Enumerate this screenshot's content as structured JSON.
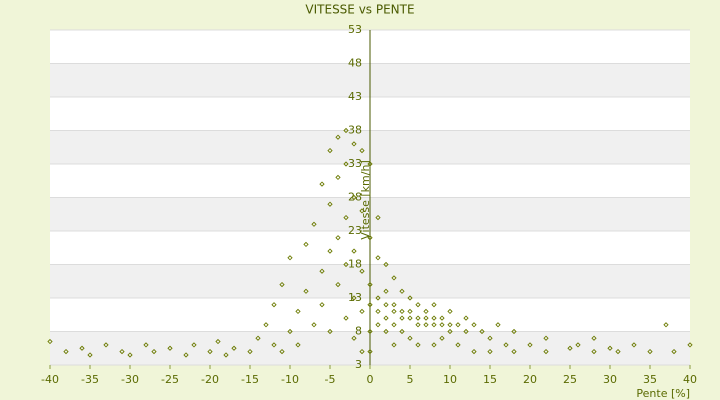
{
  "chart_data": {
    "type": "scatter",
    "title": "VITESSE vs PENTE",
    "x_label": "Pente [%]",
    "y_label": "Vitesse [km/h]",
    "color": "#6b7a00",
    "xlim": [
      -40,
      40
    ],
    "xticks": [
      -40,
      -35,
      -30,
      -25,
      -20,
      -15,
      -10,
      -5,
      0,
      5,
      10,
      15,
      20,
      25,
      30,
      35,
      40
    ],
    "ylim": [
      3,
      53
    ],
    "yticks": [
      3,
      8,
      13,
      18,
      23,
      28,
      33,
      38,
      43,
      48,
      53
    ],
    "x": [
      -40,
      -38,
      -36,
      -35,
      -33,
      -31,
      -30,
      -28,
      -27,
      -25,
      -23,
      -22,
      -20,
      -19,
      -18,
      -17,
      -15,
      -14,
      -13,
      -12,
      -12,
      -11,
      -11,
      -10,
      -10,
      -9,
      -9,
      -8,
      -8,
      -7,
      -7,
      -6,
      -6,
      -6,
      -5,
      -5,
      -5,
      -5,
      -4,
      -4,
      -4,
      -4,
      -3,
      -3,
      -3,
      -3,
      -3,
      -2,
      -2,
      -2,
      -2,
      -2,
      -1,
      -1,
      -1,
      -1,
      -1,
      0,
      0,
      0,
      0,
      0,
      0,
      1,
      1,
      1,
      1,
      1,
      2,
      2,
      2,
      2,
      2,
      3,
      3,
      3,
      3,
      3,
      4,
      4,
      4,
      4,
      5,
      5,
      5,
      5,
      6,
      6,
      6,
      6,
      7,
      7,
      7,
      8,
      8,
      8,
      8,
      9,
      9,
      9,
      10,
      10,
      10,
      11,
      11,
      12,
      12,
      13,
      13,
      14,
      15,
      15,
      16,
      17,
      18,
      18,
      20,
      22,
      22,
      25,
      26,
      28,
      28,
      30,
      31,
      33,
      35,
      37,
      38,
      40
    ],
    "values": [
      6.5,
      5,
      5.5,
      4.5,
      6,
      5,
      4.5,
      6,
      5,
      5.5,
      4.5,
      6,
      5,
      6.5,
      4.5,
      5.5,
      5,
      7,
      9,
      6,
      12,
      5,
      15,
      8,
      19,
      11,
      6,
      14,
      21,
      9,
      24,
      17,
      30,
      12,
      35,
      27,
      20,
      8,
      37,
      31,
      22,
      15,
      38,
      33,
      25,
      18,
      10,
      36,
      28,
      20,
      13,
      7,
      35,
      26,
      17,
      11,
      5,
      33,
      22,
      15,
      12,
      8,
      5,
      25,
      19,
      13,
      11,
      9,
      18,
      14,
      12,
      10,
      8,
      16,
      12,
      11,
      9,
      6,
      14,
      11,
      10,
      8,
      13,
      11,
      10,
      7,
      12,
      10,
      9,
      6,
      11,
      10,
      9,
      12,
      10,
      9,
      6,
      10,
      9,
      7,
      11,
      9,
      8,
      9,
      6,
      10,
      8,
      9,
      5,
      8,
      7,
      5,
      9,
      6,
      8,
      5,
      6,
      5,
      7,
      5.5,
      6,
      7,
      5,
      5.5,
      5,
      6,
      5,
      9,
      5,
      6
    ]
  }
}
